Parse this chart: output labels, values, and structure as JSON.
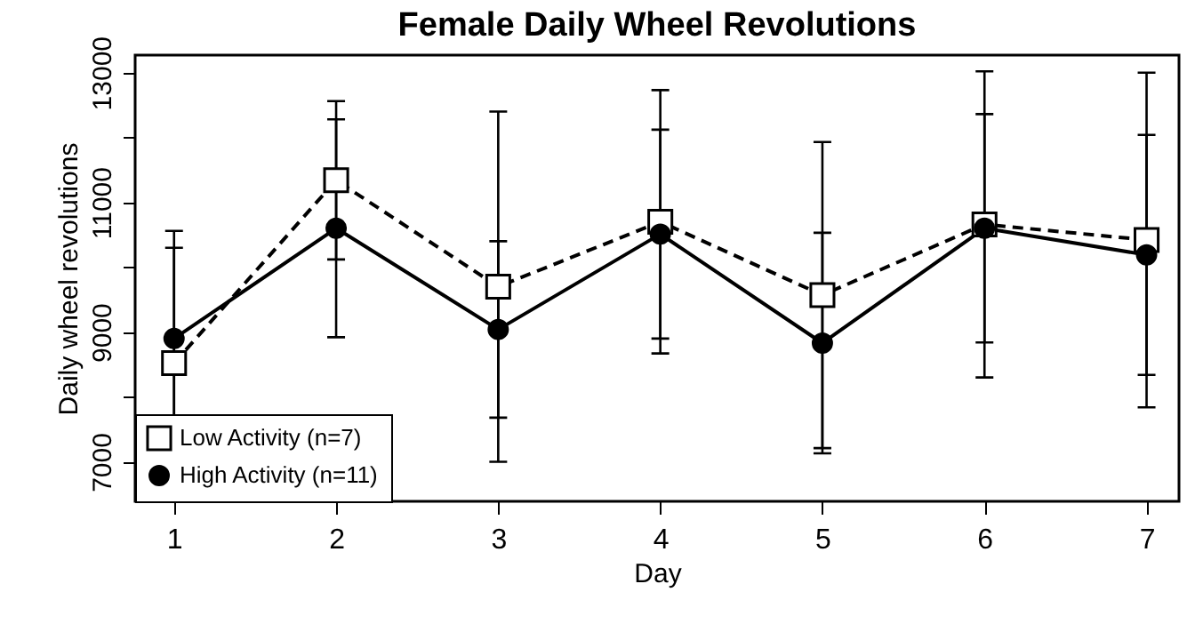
{
  "chart_data": {
    "type": "line",
    "title": "Female Daily Wheel Revolutions",
    "xlabel": "Day",
    "ylabel": "Daily wheel revolutions",
    "x": [
      1,
      2,
      3,
      4,
      5,
      6,
      7
    ],
    "series": [
      {
        "name": "Low Activity (n=7)",
        "color": "#000000",
        "marker": "square",
        "line_style": "dashed",
        "values": [
          8520,
          11340,
          9700,
          10700,
          9570,
          10660,
          10420
        ],
        "errors": [
          1780,
          1220,
          2700,
          2030,
          2360,
          2360,
          2580
        ]
      },
      {
        "name": "High Activity (n=11)",
        "color": "#000000",
        "marker": "circle",
        "line_style": "solid",
        "values": [
          8900,
          10600,
          9040,
          10510,
          8830,
          10600,
          10190
        ],
        "errors": [
          1660,
          1680,
          1360,
          1610,
          1700,
          1760,
          1850
        ]
      }
    ],
    "xlim": [
      0.76,
      7.2
    ],
    "ylim": [
      6390,
      13270
    ],
    "xticks": [
      1,
      2,
      3,
      4,
      5,
      6,
      7
    ],
    "yticks": [
      7000,
      {
        "value": 8000,
        "label": null
      },
      9000,
      {
        "value": 10000,
        "label": null
      },
      11000,
      {
        "value": 12000,
        "label": null
      },
      13000
    ],
    "grid": false,
    "legend": "bottom left"
  }
}
